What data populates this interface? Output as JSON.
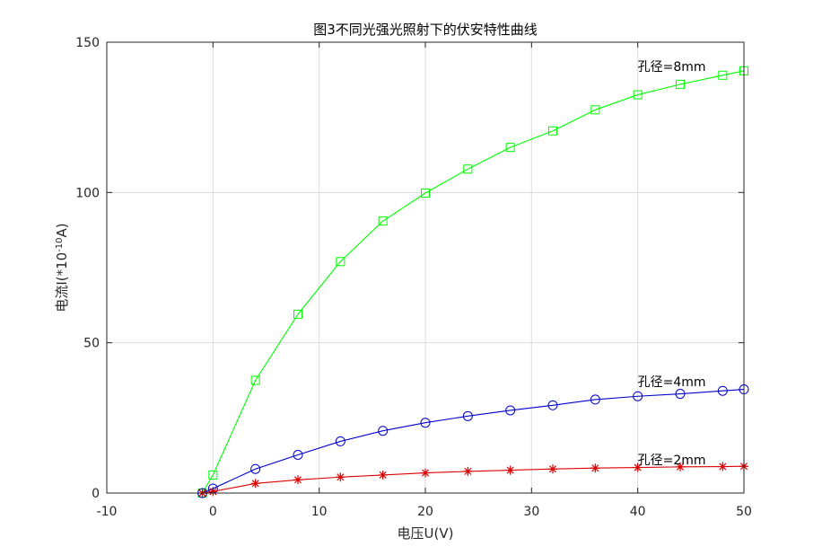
{
  "chart_data": {
    "type": "line",
    "title": "图3不同光强光照射下的伏安特性曲线",
    "xlabel": "电压U(V)",
    "ylabel": {
      "prefix": "电流I(*10",
      "sup": "-10",
      "suffix": "A)"
    },
    "xlim": [
      -10,
      50
    ],
    "ylim": [
      0,
      150
    ],
    "xticks": [
      -10,
      0,
      10,
      20,
      30,
      40,
      50
    ],
    "yticks": [
      0,
      50,
      100,
      150
    ],
    "grid": true,
    "series": [
      {
        "name": "孔径=8mm",
        "color": "#00ff00",
        "marker": "square",
        "x": [
          -1,
          0,
          4,
          8,
          12,
          16,
          20,
          24,
          28,
          32,
          36,
          40,
          44,
          48,
          50
        ],
        "y": [
          0,
          6,
          37.5,
          59.5,
          77,
          90.5,
          99.8,
          107.8,
          115,
          120.5,
          127.5,
          132.5,
          136,
          139,
          140.5
        ]
      },
      {
        "name": "孔径=4mm",
        "color": "#0000cc",
        "marker": "circle",
        "x": [
          -1,
          0,
          4,
          8,
          12,
          16,
          20,
          24,
          28,
          32,
          36,
          40,
          44,
          48,
          50
        ],
        "y": [
          0,
          1.5,
          8,
          12.7,
          17.2,
          20.7,
          23.4,
          25.6,
          27.5,
          29.2,
          31.1,
          32.2,
          33,
          34,
          34.5
        ]
      },
      {
        "name": "孔径=2mm",
        "color": "#dd0000",
        "marker": "asterisk",
        "x": [
          -1,
          0,
          4,
          8,
          12,
          16,
          20,
          24,
          28,
          32,
          36,
          40,
          44,
          48,
          50
        ],
        "y": [
          0,
          0.5,
          3.2,
          4.4,
          5.3,
          6,
          6.7,
          7.2,
          7.6,
          8,
          8.3,
          8.5,
          8.7,
          8.8,
          8.9
        ]
      }
    ],
    "annotations": [
      {
        "text": "孔径=8mm",
        "x": 40,
        "y": 140.5
      },
      {
        "text": "孔径=4mm",
        "x": 40,
        "y": 35.5
      },
      {
        "text": "孔径=2mm",
        "x": 40,
        "y": 9.5
      }
    ]
  }
}
